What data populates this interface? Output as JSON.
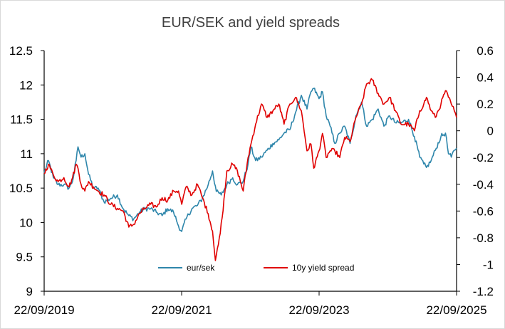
{
  "chart_data": {
    "type": "line",
    "title": "EUR/SEK and yield spreads",
    "xlabel": "",
    "ylabel": "",
    "x_ticks": [
      "22/09/2019",
      "22/09/2021",
      "22/09/2023",
      "22/09/2025"
    ],
    "x_range": [
      "2019-09-22",
      "2025-09-22"
    ],
    "y_left": {
      "min": 9,
      "max": 12.5,
      "step": 0.5,
      "ticks": [
        "9",
        "9.5",
        "10",
        "10.5",
        "11",
        "11.5",
        "12",
        "12.5"
      ]
    },
    "y_right": {
      "min": -1.2,
      "max": 0.6,
      "step": 0.2,
      "ticks": [
        "-1.2",
        "-1",
        "-0.8",
        "-0.6",
        "-0.4",
        "-0.2",
        "0",
        "0.2",
        "0.4",
        "0.6"
      ]
    },
    "grid": false,
    "legend_position": "bottom-center-inside",
    "series": [
      {
        "name": "eur/sek",
        "axis": "left",
        "color": "#2E86AB",
        "points": [
          [
            "2019-09-22",
            10.72
          ],
          [
            "2019-10-15",
            10.9
          ],
          [
            "2019-11-10",
            10.65
          ],
          [
            "2019-12-05",
            10.55
          ],
          [
            "2020-01-05",
            10.55
          ],
          [
            "2020-02-01",
            10.5
          ],
          [
            "2020-02-20",
            10.6
          ],
          [
            "2020-03-10",
            10.9
          ],
          [
            "2020-03-20",
            11.1
          ],
          [
            "2020-04-05",
            10.95
          ],
          [
            "2020-04-25",
            11.0
          ],
          [
            "2020-05-15",
            10.7
          ],
          [
            "2020-06-10",
            10.5
          ],
          [
            "2020-07-05",
            10.5
          ],
          [
            "2020-08-05",
            10.3
          ],
          [
            "2020-09-10",
            10.35
          ],
          [
            "2020-10-15",
            10.4
          ],
          [
            "2020-11-15",
            10.2
          ],
          [
            "2020-12-15",
            10.1
          ],
          [
            "2021-01-10",
            10.05
          ],
          [
            "2021-02-10",
            10.15
          ],
          [
            "2021-03-10",
            10.2
          ],
          [
            "2021-04-10",
            10.2
          ],
          [
            "2021-05-10",
            10.15
          ],
          [
            "2021-06-10",
            10.1
          ],
          [
            "2021-07-10",
            10.2
          ],
          [
            "2021-08-10",
            10.15
          ],
          [
            "2021-09-05",
            9.95
          ],
          [
            "2021-09-22",
            9.87
          ],
          [
            "2021-10-15",
            10.05
          ],
          [
            "2021-11-15",
            10.2
          ],
          [
            "2021-12-15",
            10.25
          ],
          [
            "2022-01-10",
            10.35
          ],
          [
            "2022-02-10",
            10.55
          ],
          [
            "2022-03-05",
            10.75
          ],
          [
            "2022-03-25",
            10.45
          ],
          [
            "2022-04-20",
            10.4
          ],
          [
            "2022-05-20",
            10.55
          ],
          [
            "2022-06-20",
            10.65
          ],
          [
            "2022-07-15",
            10.55
          ],
          [
            "2022-08-15",
            10.6
          ],
          [
            "2022-09-10",
            10.85
          ],
          [
            "2022-09-25",
            11.1
          ],
          [
            "2022-10-20",
            10.9
          ],
          [
            "2022-11-20",
            10.95
          ],
          [
            "2022-12-20",
            11.05
          ],
          [
            "2023-01-20",
            11.15
          ],
          [
            "2023-02-20",
            11.2
          ],
          [
            "2023-03-20",
            11.3
          ],
          [
            "2023-04-20",
            11.35
          ],
          [
            "2023-05-20",
            11.6
          ],
          [
            "2023-06-20",
            11.85
          ],
          [
            "2023-07-20",
            11.65
          ],
          [
            "2023-08-10",
            11.9
          ],
          [
            "2023-08-25",
            11.95
          ],
          [
            "2023-09-22",
            11.8
          ],
          [
            "2023-10-10",
            11.9
          ],
          [
            "2023-10-30",
            11.55
          ],
          [
            "2023-11-20",
            11.4
          ],
          [
            "2023-12-15",
            11.15
          ],
          [
            "2024-01-10",
            11.3
          ],
          [
            "2024-02-05",
            11.4
          ],
          [
            "2024-03-05",
            11.15
          ],
          [
            "2024-04-05",
            11.55
          ],
          [
            "2024-05-05",
            11.75
          ],
          [
            "2024-06-01",
            11.4
          ],
          [
            "2024-07-01",
            11.5
          ],
          [
            "2024-08-01",
            11.65
          ],
          [
            "2024-09-01",
            11.4
          ],
          [
            "2024-10-01",
            11.55
          ],
          [
            "2024-11-01",
            11.45
          ],
          [
            "2024-12-01",
            11.45
          ],
          [
            "2025-01-10",
            11.5
          ],
          [
            "2025-02-10",
            11.25
          ],
          [
            "2025-03-10",
            10.95
          ],
          [
            "2025-04-01",
            10.85
          ],
          [
            "2025-04-15",
            10.8
          ],
          [
            "2025-05-10",
            10.9
          ],
          [
            "2025-06-01",
            11.05
          ],
          [
            "2025-07-01",
            11.25
          ],
          [
            "2025-07-25",
            11.3
          ],
          [
            "2025-08-10",
            11.0
          ],
          [
            "2025-08-25",
            10.95
          ],
          [
            "2025-09-10",
            11.05
          ],
          [
            "2025-09-22",
            11.08
          ]
        ]
      },
      {
        "name": "10y yield spread",
        "axis": "right",
        "color": "#E00000",
        "points": [
          [
            "2019-09-22",
            -0.32
          ],
          [
            "2019-10-15",
            -0.25
          ],
          [
            "2019-11-10",
            -0.33
          ],
          [
            "2019-12-05",
            -0.38
          ],
          [
            "2020-01-05",
            -0.35
          ],
          [
            "2020-02-01",
            -0.42
          ],
          [
            "2020-02-20",
            -0.35
          ],
          [
            "2020-03-10",
            -0.25
          ],
          [
            "2020-03-20",
            -0.28
          ],
          [
            "2020-04-05",
            -0.4
          ],
          [
            "2020-04-25",
            -0.45
          ],
          [
            "2020-05-15",
            -0.38
          ],
          [
            "2020-06-10",
            -0.42
          ],
          [
            "2020-07-05",
            -0.45
          ],
          [
            "2020-08-05",
            -0.48
          ],
          [
            "2020-09-10",
            -0.55
          ],
          [
            "2020-10-15",
            -0.58
          ],
          [
            "2020-11-15",
            -0.6
          ],
          [
            "2020-12-15",
            -0.72
          ],
          [
            "2021-01-10",
            -0.7
          ],
          [
            "2021-02-10",
            -0.62
          ],
          [
            "2021-03-10",
            -0.58
          ],
          [
            "2021-04-10",
            -0.55
          ],
          [
            "2021-05-10",
            -0.57
          ],
          [
            "2021-06-10",
            -0.5
          ],
          [
            "2021-07-10",
            -0.52
          ],
          [
            "2021-08-10",
            -0.45
          ],
          [
            "2021-09-05",
            -0.45
          ],
          [
            "2021-09-22",
            -0.55
          ],
          [
            "2021-10-15",
            -0.42
          ],
          [
            "2021-11-15",
            -0.48
          ],
          [
            "2021-12-15",
            -0.4
          ],
          [
            "2022-01-10",
            -0.5
          ],
          [
            "2022-02-10",
            -0.62
          ],
          [
            "2022-03-05",
            -0.75
          ],
          [
            "2022-03-20",
            -0.97
          ],
          [
            "2022-04-05",
            -0.85
          ],
          [
            "2022-04-25",
            -0.65
          ],
          [
            "2022-05-20",
            -0.3
          ],
          [
            "2022-06-20",
            -0.25
          ],
          [
            "2022-07-15",
            -0.3
          ],
          [
            "2022-08-15",
            -0.45
          ],
          [
            "2022-09-10",
            -0.2
          ],
          [
            "2022-09-25",
            -0.1
          ],
          [
            "2022-10-20",
            0.05
          ],
          [
            "2022-11-20",
            0.2
          ],
          [
            "2022-12-20",
            0.1
          ],
          [
            "2023-01-20",
            0.15
          ],
          [
            "2023-02-20",
            0.2
          ],
          [
            "2023-03-20",
            0.05
          ],
          [
            "2023-04-20",
            0.2
          ],
          [
            "2023-05-20",
            0.25
          ],
          [
            "2023-06-20",
            0.15
          ],
          [
            "2023-07-20",
            -0.15
          ],
          [
            "2023-08-10",
            -0.1
          ],
          [
            "2023-08-25",
            -0.28
          ],
          [
            "2023-09-22",
            -0.15
          ],
          [
            "2023-10-10",
            -0.02
          ],
          [
            "2023-10-30",
            -0.2
          ],
          [
            "2023-11-20",
            -0.15
          ],
          [
            "2023-12-15",
            -0.15
          ],
          [
            "2024-01-10",
            -0.2
          ],
          [
            "2024-02-05",
            -0.05
          ],
          [
            "2024-03-05",
            -0.08
          ],
          [
            "2024-04-05",
            0.1
          ],
          [
            "2024-05-05",
            0.2
          ],
          [
            "2024-06-01",
            0.35
          ],
          [
            "2024-07-01",
            0.38
          ],
          [
            "2024-08-01",
            0.28
          ],
          [
            "2024-09-01",
            0.2
          ],
          [
            "2024-10-01",
            0.25
          ],
          [
            "2024-11-01",
            0.15
          ],
          [
            "2024-12-01",
            0.05
          ],
          [
            "2025-01-10",
            0.05
          ],
          [
            "2025-02-10",
            0.0
          ],
          [
            "2025-03-10",
            0.15
          ],
          [
            "2025-04-01",
            0.2
          ],
          [
            "2025-04-15",
            0.25
          ],
          [
            "2025-05-10",
            0.15
          ],
          [
            "2025-06-01",
            0.1
          ],
          [
            "2025-07-01",
            0.2
          ],
          [
            "2025-07-25",
            0.3
          ],
          [
            "2025-08-10",
            0.25
          ],
          [
            "2025-08-25",
            0.2
          ],
          [
            "2025-09-10",
            0.15
          ],
          [
            "2025-09-22",
            0.1
          ]
        ]
      }
    ]
  }
}
